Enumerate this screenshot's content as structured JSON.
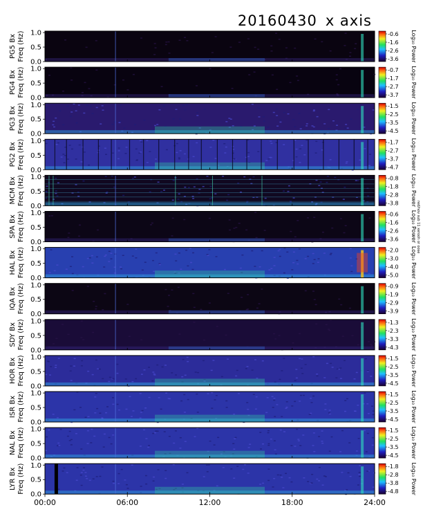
{
  "title": {
    "date": "20160430",
    "component": "x axis"
  },
  "side_note": "red/nov sub 11 xerooh or oose",
  "chart_data": {
    "type": "heatmap",
    "title": "20160430 x axis",
    "x_ticks": [
      "00:00",
      "06:00",
      "12:00",
      "18:00",
      "24:00"
    ],
    "xlim": [
      0,
      24
    ],
    "ylim": [
      0,
      1.05
    ],
    "y_ticks": [
      "0.0",
      "0.5",
      "1.0"
    ],
    "colorbar_label": "Log₁₀ Power",
    "panels": [
      {
        "station": "PG5",
        "ylabel": "PG5 Bx",
        "freq_label": "Freq (Hz)",
        "cbar_ticks": [
          "-0.6",
          "-1.6",
          "-2.6",
          "-3.6"
        ],
        "bg": "#0a0410",
        "activity": "low"
      },
      {
        "station": "PG4",
        "ylabel": "PG4 Bx",
        "freq_label": "Freq (Hz)",
        "cbar_ticks": [
          "-0.7",
          "-1.7",
          "-2.7",
          "-3.7"
        ],
        "bg": "#080310",
        "activity": "low"
      },
      {
        "station": "PG3",
        "ylabel": "PG3 Bx",
        "freq_label": "Freq (Hz)",
        "cbar_ticks": [
          "-1.5",
          "-2.5",
          "-3.5",
          "-4.5"
        ],
        "bg": "#2a1a6e",
        "activity": "medium"
      },
      {
        "station": "PG2",
        "ylabel": "PG2 Bx",
        "freq_label": "Freq (Hz)",
        "cbar_ticks": [
          "-1.7",
          "-2.7",
          "-3.7",
          "-4.7"
        ],
        "bg": "#3030a0",
        "activity": "striped"
      },
      {
        "station": "MCM",
        "ylabel": "MCM Bx",
        "freq_label": "Freq (Hz)",
        "cbar_ticks": [
          "-0.8",
          "-1.8",
          "-2.8",
          "-3.8"
        ],
        "bg": "#100820",
        "activity": "lines"
      },
      {
        "station": "SPA",
        "ylabel": "SPA Bx",
        "freq_label": "Freq (Hz)",
        "cbar_ticks": [
          "-0.6",
          "-1.6",
          "-2.6",
          "-3.6"
        ],
        "bg": "#0c0616",
        "activity": "low"
      },
      {
        "station": "HAL",
        "ylabel": "HAL Bx",
        "freq_label": "Freq (Hz)",
        "cbar_ticks": [
          "-2.0",
          "-3.0",
          "-4.0",
          "-5.0"
        ],
        "bg": "#2840b0",
        "activity": "high"
      },
      {
        "station": "IQA",
        "ylabel": "IQA Bx",
        "freq_label": "Freq (Hz)",
        "cbar_ticks": [
          "-0.9",
          "-1.9",
          "-2.9",
          "-3.9"
        ],
        "bg": "#0c0614",
        "activity": "low"
      },
      {
        "station": "SDY",
        "ylabel": "SDY Bx",
        "freq_label": "Freq (Hz)",
        "cbar_ticks": [
          "-1.3",
          "-2.3",
          "-3.3",
          "-4.3"
        ],
        "bg": "#1a0c38",
        "activity": "low"
      },
      {
        "station": "HOR",
        "ylabel": "HOR Bx",
        "freq_label": "Freq (Hz)",
        "cbar_ticks": [
          "-1.5",
          "-2.5",
          "-3.5",
          "-4.5"
        ],
        "bg": "#2c2c9a",
        "activity": "medium"
      },
      {
        "station": "ISR",
        "ylabel": "ISR Bx",
        "freq_label": "Freq (Hz)",
        "cbar_ticks": [
          "-1.5",
          "-2.5",
          "-3.5",
          "-4.5"
        ],
        "bg": "#2c34a8",
        "activity": "medium"
      },
      {
        "station": "NAL",
        "ylabel": "NAL Bx",
        "freq_label": "Freq (Hz)",
        "cbar_ticks": [
          "-1.5",
          "-2.5",
          "-3.5",
          "-4.5"
        ],
        "bg": "#2c34a8",
        "activity": "medium"
      },
      {
        "station": "LYR",
        "ylabel": "LYR Bx",
        "freq_label": "Freq (Hz)",
        "cbar_ticks": [
          "-1.8",
          "-2.8",
          "-3.8",
          "-4.8"
        ],
        "bg": "#2c34a8",
        "activity": "medium"
      }
    ]
  }
}
